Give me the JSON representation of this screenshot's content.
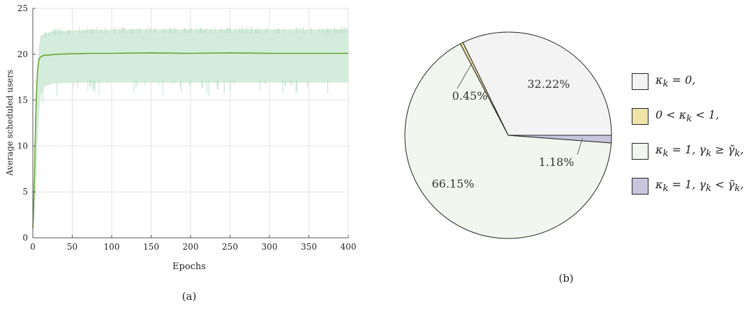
{
  "figure": {
    "panel_a_caption": "(a)",
    "panel_b_caption": "(b)"
  },
  "colors": {
    "band_fill": "#d4ecdc",
    "line": "#6aa533",
    "grid": "#e2e2e2",
    "axis": "#555555",
    "slice_zero": "#f3f3f3",
    "slice_partial": "#efe3a7",
    "slice_full_ok": "#f1f7ee",
    "slice_full_low": "#c9c5dd"
  },
  "chart_data": [
    {
      "type": "line",
      "xlabel": "Epochs",
      "ylabel": "Average scheduled users",
      "xlim": [
        0,
        400
      ],
      "ylim": [
        0,
        25
      ],
      "xticks": [
        0,
        50,
        100,
        150,
        200,
        250,
        300,
        350,
        400
      ],
      "yticks": [
        0,
        5,
        10,
        15,
        20,
        25
      ],
      "grid": true,
      "series": [
        {
          "kind": "mean",
          "x": [
            0,
            1,
            2,
            3,
            4,
            5,
            6,
            7,
            8,
            10,
            12,
            15,
            20,
            30,
            50,
            75,
            100,
            150,
            200,
            250,
            300,
            350,
            400
          ],
          "y": [
            1.0,
            3.2,
            6.5,
            10.5,
            14.0,
            16.5,
            18.2,
            19.0,
            19.5,
            19.7,
            19.8,
            19.9,
            19.9,
            20.0,
            20.05,
            20.1,
            20.1,
            20.15,
            20.1,
            20.15,
            20.1,
            20.1,
            20.1
          ]
        },
        {
          "kind": "range",
          "x": [
            0,
            2,
            4,
            6,
            8,
            10,
            15,
            25,
            50,
            100,
            200,
            300,
            400
          ],
          "y_upper": [
            1.5,
            6.8,
            14.2,
            18.8,
            21.0,
            22.0,
            22.2,
            22.5,
            22.6,
            22.7,
            22.7,
            22.7,
            22.7
          ],
          "y_lower": [
            0.8,
            2.0,
            6.0,
            10.5,
            13.5,
            15.5,
            16.5,
            16.8,
            16.9,
            16.9,
            16.9,
            16.9,
            16.9
          ]
        }
      ]
    },
    {
      "type": "pie",
      "slices": [
        {
          "key": "zero",
          "value": 32.22,
          "label": "32.22%"
        },
        {
          "key": "partial",
          "value": 0.45,
          "label": "0.45%"
        },
        {
          "key": "full_ok",
          "value": 66.15,
          "label": "66.15%"
        },
        {
          "key": "full_low",
          "value": 1.18,
          "label": "1.18%"
        }
      ],
      "start": "3 o'clock, counter-clockwise",
      "legend_placement": "right",
      "legend": [
        {
          "key": "zero",
          "tex": "κ_k = 0,"
        },
        {
          "key": "partial",
          "tex": "0 < κ_k < 1,"
        },
        {
          "key": "full_ok",
          "tex": "κ_k = 1, γ_k ≥ γ̃_k,"
        },
        {
          "key": "full_low",
          "tex": "κ_k = 1, γ_k < γ̃_k,"
        }
      ]
    }
  ]
}
